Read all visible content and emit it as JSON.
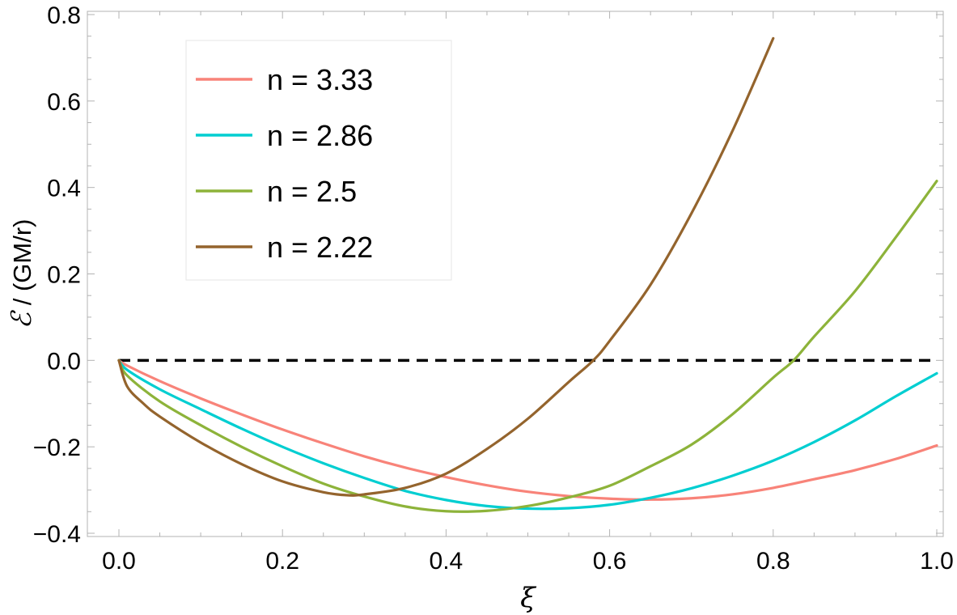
{
  "chart_data": {
    "type": "line",
    "title": "",
    "xlabel": "ξ",
    "ylabel_symbol": "ℰ",
    "ylabel_rest": " / (GM/r)",
    "xlim": [
      0.0,
      1.0
    ],
    "ylim": [
      -0.4,
      0.8
    ],
    "xticks": [
      0.0,
      0.2,
      0.4,
      0.6,
      0.8,
      1.0
    ],
    "xtick_labels": [
      "0.0",
      "0.2",
      "0.4",
      "0.6",
      "0.8",
      "1.0"
    ],
    "yticks": [
      -0.4,
      -0.2,
      0.0,
      0.2,
      0.4,
      0.6,
      0.8
    ],
    "ytick_labels": [
      "−0.4",
      "−0.2",
      "0.0",
      "0.2",
      "0.4",
      "0.6",
      "0.8"
    ],
    "grid": false,
    "legend_position": "top-left",
    "reference_line": {
      "y": 0.0,
      "x_range": [
        0.0,
        1.0
      ],
      "style": "dashed",
      "color": "#000000"
    },
    "series": [
      {
        "name": "n = 3.33",
        "color": "#F88379",
        "x": [
          0.0,
          0.01,
          0.05,
          0.1,
          0.15,
          0.2,
          0.25,
          0.3,
          0.35,
          0.4,
          0.45,
          0.5,
          0.55,
          0.6,
          0.65,
          0.7,
          0.75,
          0.8,
          0.85,
          0.9,
          0.95,
          1.0
        ],
        "y": [
          0.0,
          -0.012,
          -0.048,
          -0.088,
          -0.125,
          -0.16,
          -0.192,
          -0.222,
          -0.248,
          -0.27,
          -0.289,
          -0.304,
          -0.314,
          -0.32,
          -0.322,
          -0.319,
          -0.31,
          -0.295,
          -0.275,
          -0.254,
          -0.228,
          -0.197
        ]
      },
      {
        "name": "n = 2.86",
        "color": "#00CED1",
        "x": [
          0.0,
          0.01,
          0.05,
          0.1,
          0.15,
          0.2,
          0.25,
          0.3,
          0.35,
          0.4,
          0.45,
          0.5,
          0.55,
          0.6,
          0.65,
          0.7,
          0.75,
          0.8,
          0.85,
          0.9,
          0.95,
          1.0
        ],
        "y": [
          0.0,
          -0.022,
          -0.067,
          -0.113,
          -0.158,
          -0.2,
          -0.238,
          -0.272,
          -0.302,
          -0.323,
          -0.337,
          -0.343,
          -0.342,
          -0.334,
          -0.318,
          -0.296,
          -0.267,
          -0.232,
          -0.189,
          -0.139,
          -0.083,
          -0.03
        ]
      },
      {
        "name": "n = 2.5",
        "color": "#8DB33A",
        "x": [
          0.0,
          0.01,
          0.05,
          0.1,
          0.15,
          0.2,
          0.25,
          0.3,
          0.35,
          0.4,
          0.45,
          0.5,
          0.55,
          0.6,
          0.65,
          0.7,
          0.75,
          0.8,
          0.825,
          0.85,
          0.9,
          0.95,
          1.0
        ],
        "y": [
          0.0,
          -0.035,
          -0.095,
          -0.15,
          -0.2,
          -0.245,
          -0.285,
          -0.315,
          -0.338,
          -0.349,
          -0.348,
          -0.337,
          -0.317,
          -0.29,
          -0.245,
          -0.195,
          -0.125,
          -0.04,
          0.0,
          0.055,
          0.16,
          0.285,
          0.415
        ]
      },
      {
        "name": "n = 2.22",
        "color": "#94642D",
        "x": [
          0.0,
          0.01,
          0.03,
          0.05,
          0.1,
          0.15,
          0.2,
          0.25,
          0.28,
          0.3,
          0.35,
          0.4,
          0.45,
          0.5,
          0.55,
          0.58,
          0.6,
          0.65,
          0.7,
          0.75,
          0.8
        ],
        "y": [
          0.0,
          -0.06,
          -0.1,
          -0.13,
          -0.19,
          -0.24,
          -0.28,
          -0.305,
          -0.312,
          -0.31,
          -0.295,
          -0.262,
          -0.205,
          -0.135,
          -0.05,
          0.0,
          0.045,
          0.175,
          0.34,
          0.53,
          0.745
        ]
      }
    ]
  }
}
